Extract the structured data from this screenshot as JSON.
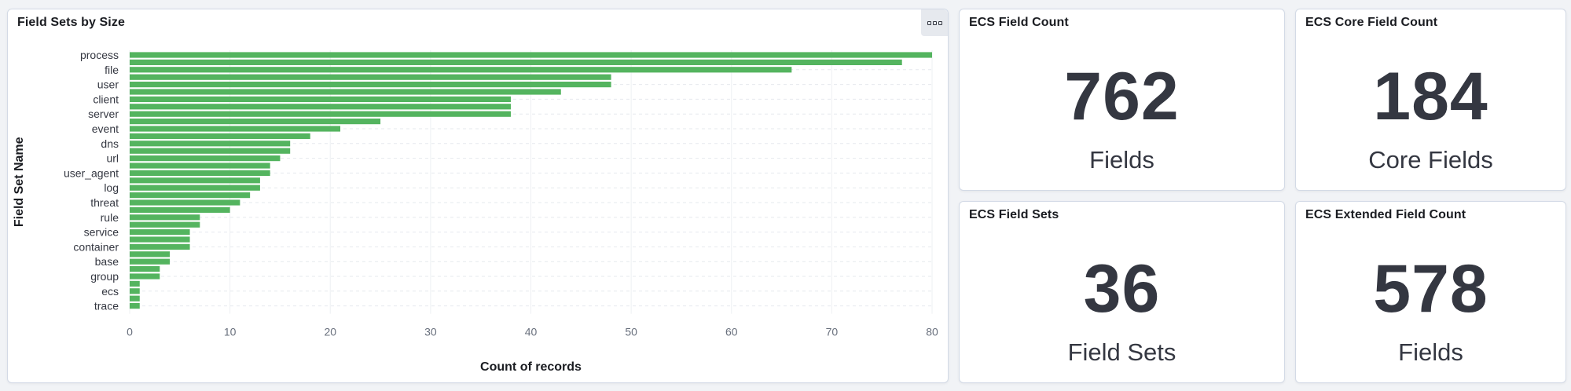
{
  "chart_panel": {
    "title": "Field Sets by Size",
    "options_icon": "panel-options-icon"
  },
  "chart_data": {
    "type": "bar",
    "orientation": "horizontal",
    "title": "Field Sets by Size",
    "xlabel": "Count of records",
    "ylabel": "Field Set Name",
    "xlim": [
      0,
      80
    ],
    "xticks": [
      0,
      10,
      20,
      30,
      40,
      50,
      60,
      70,
      80
    ],
    "grid": true,
    "bar_color": "#54b45f",
    "tick_labels_shown": [
      "process",
      "file",
      "user",
      "client",
      "server",
      "event",
      "dns",
      "url",
      "user_agent",
      "log",
      "threat",
      "rule",
      "service",
      "container",
      "base",
      "group",
      "ecs",
      "trace"
    ],
    "values": [
      80,
      77,
      66,
      48,
      48,
      43,
      38,
      38,
      38,
      25,
      21,
      18,
      16,
      16,
      15,
      14,
      14,
      13,
      13,
      12,
      11,
      10,
      7,
      7,
      6,
      6,
      6,
      4,
      4,
      3,
      3,
      1,
      1,
      1,
      1
    ]
  },
  "metrics": [
    {
      "title": "ECS Field Count",
      "value": "762",
      "label": "Fields"
    },
    {
      "title": "ECS Core Field Count",
      "value": "184",
      "label": "Core Fields"
    },
    {
      "title": "ECS Field Sets",
      "value": "36",
      "label": "Field Sets"
    },
    {
      "title": "ECS Extended Field Count",
      "value": "578",
      "label": "Fields"
    }
  ]
}
